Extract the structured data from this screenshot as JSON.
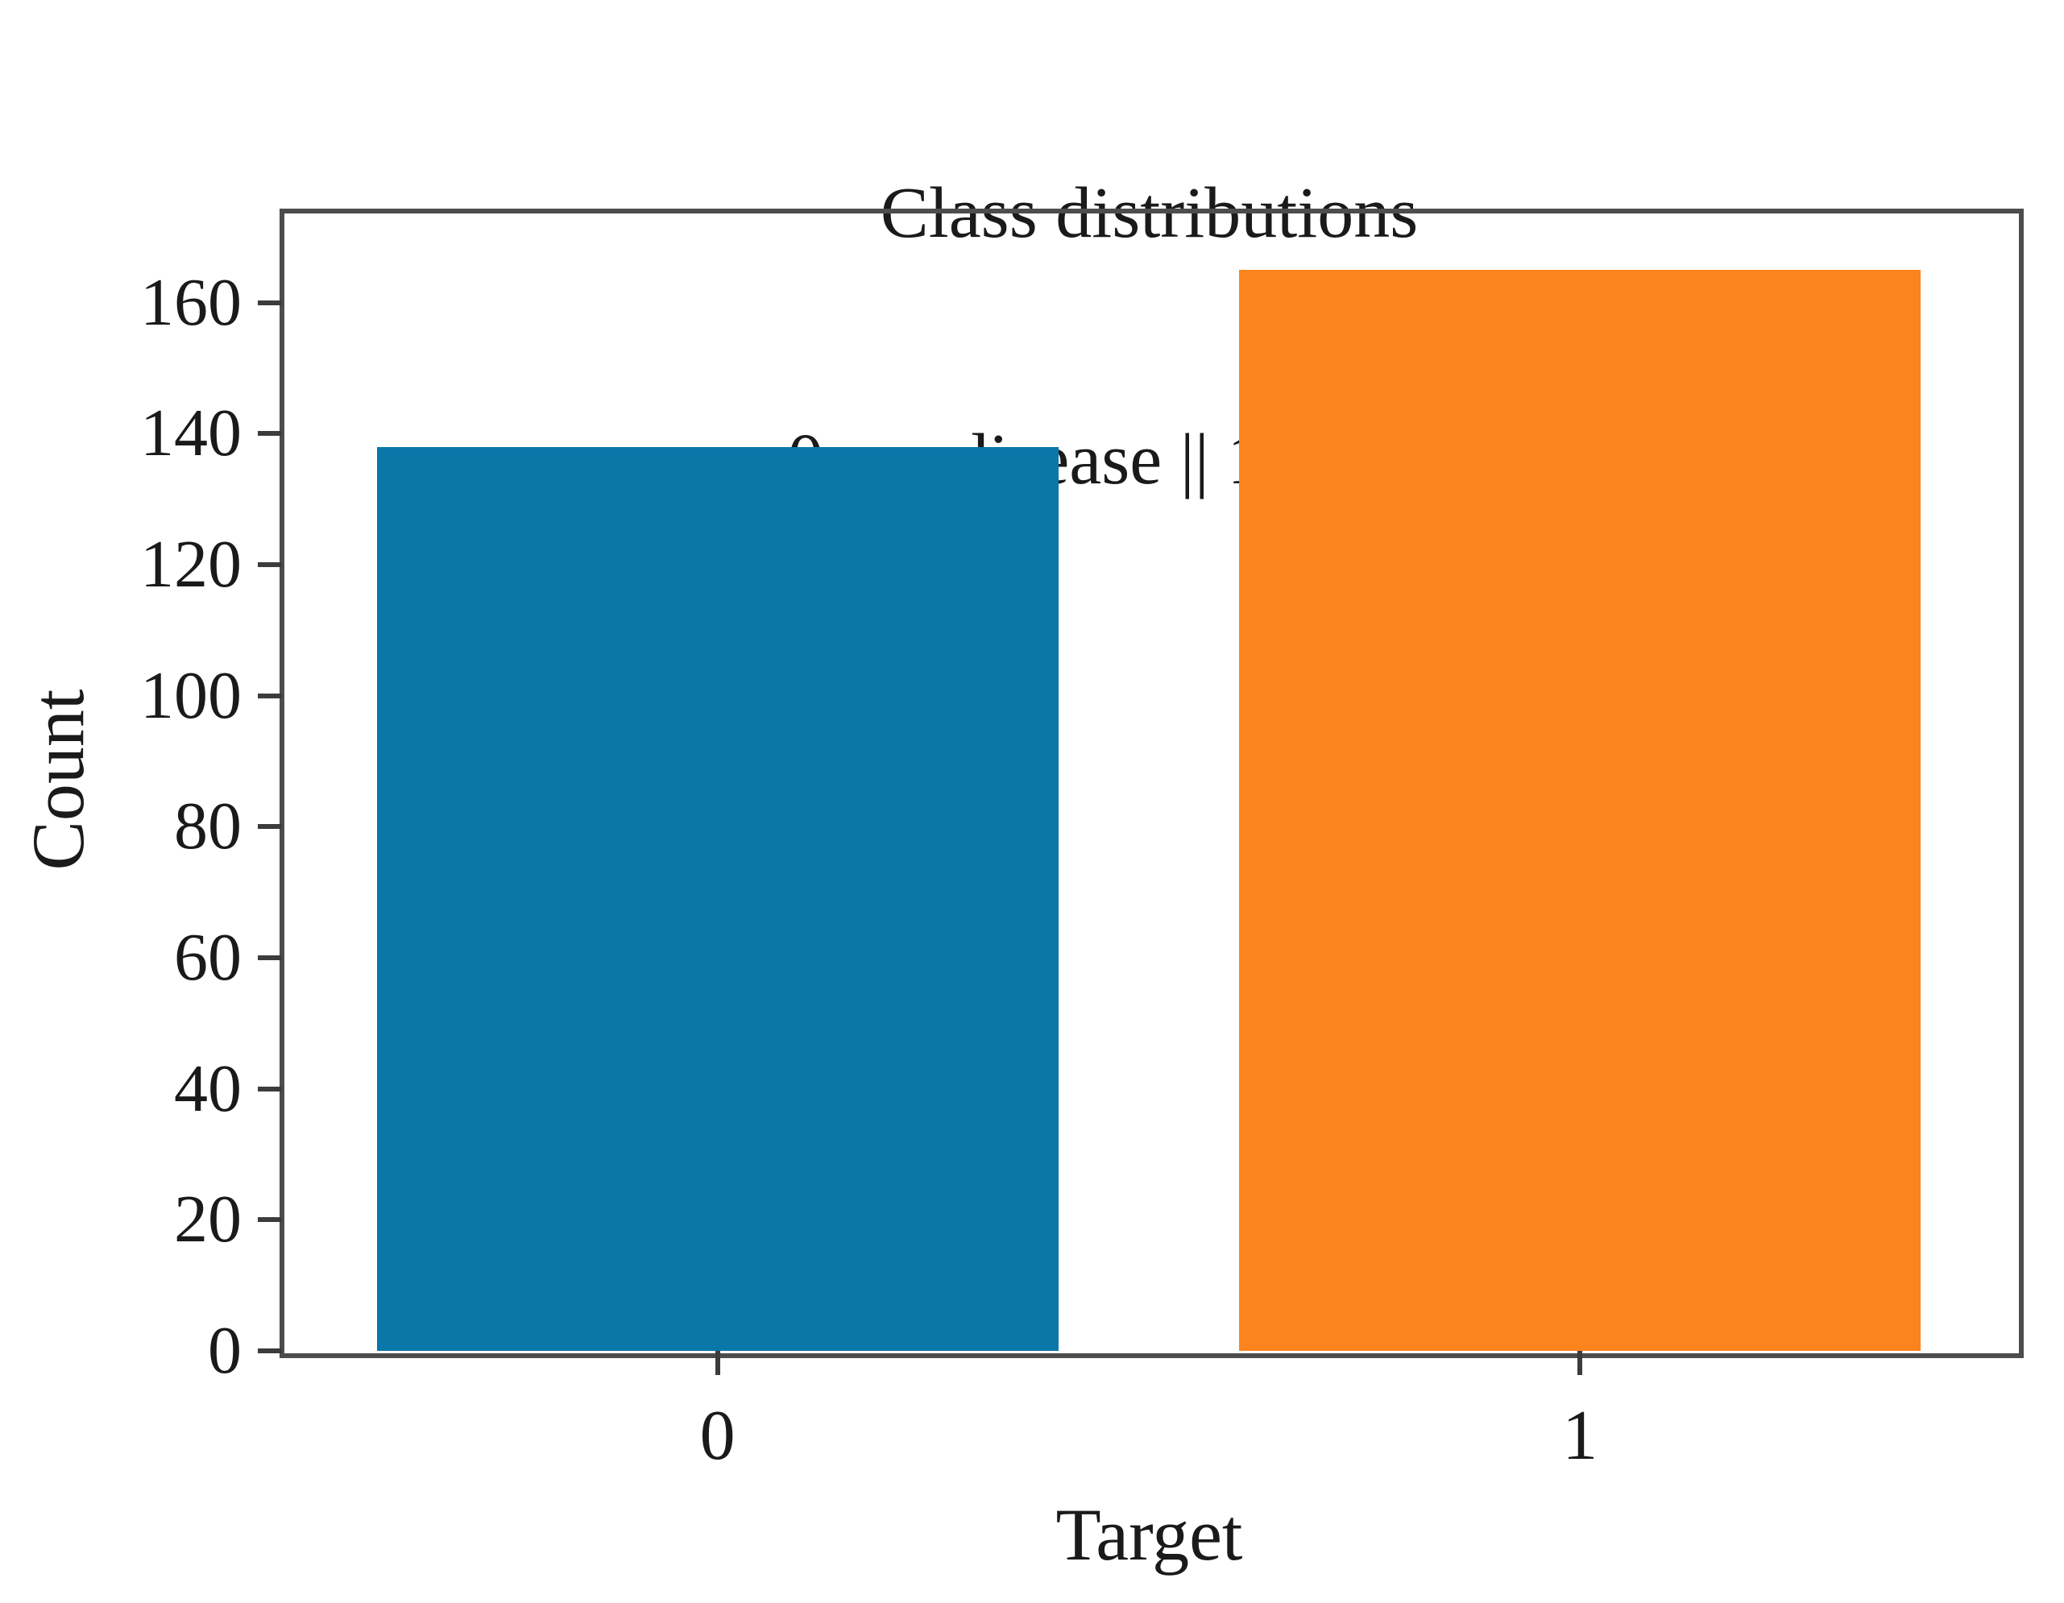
{
  "chart_data": {
    "type": "bar",
    "title": "Class distributions",
    "subtitle": "0: no disease || 1: disease",
    "categories": [
      "0",
      "1"
    ],
    "values": [
      138,
      165
    ],
    "series_labels": [
      "no disease",
      "disease"
    ],
    "bar_colors": [
      "#0a77a9",
      "#fd831d"
    ],
    "xlabel": "Target",
    "ylabel": "Count",
    "ylim": [
      0,
      174
    ],
    "yticks": [
      0,
      20,
      40,
      60,
      80,
      100,
      120,
      140,
      160
    ],
    "xlim": [
      -0.505,
      1.506
    ],
    "bar_width": 0.79,
    "grid": false,
    "legend": "none",
    "frame_color": "#4d4d4f",
    "text_color": "#1a1a1a"
  }
}
